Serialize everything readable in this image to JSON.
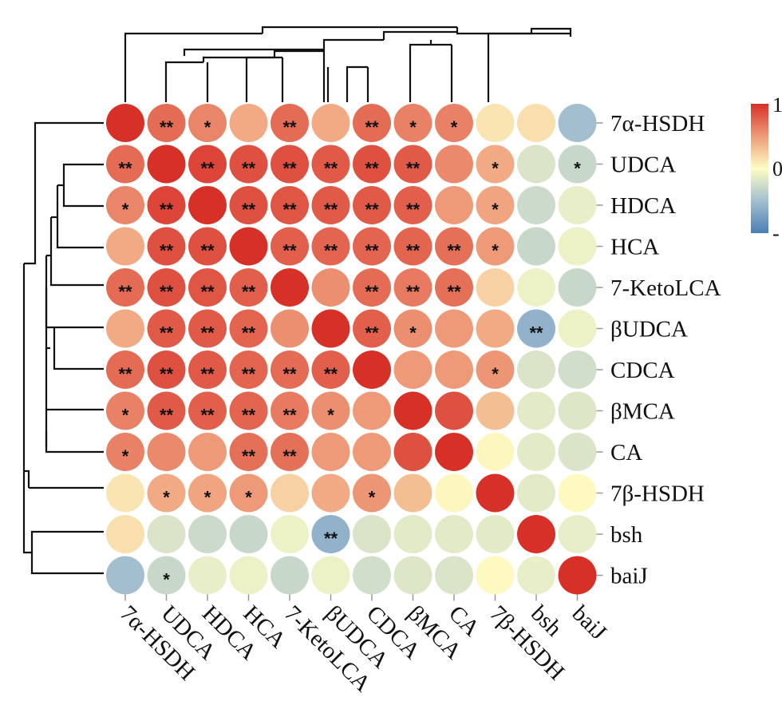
{
  "chart_data": {
    "type": "heatmap",
    "title": "",
    "xlabel": "",
    "ylabel": "",
    "labels": [
      "7α-HSDH",
      "UDCA",
      "HDCA",
      "HCA",
      "7-KetoLCA",
      "βUDCA",
      "CDCA",
      "βMCA",
      "CA",
      "7β-HSDH",
      "bsh",
      "baiJ"
    ],
    "values": [
      [
        1.0,
        0.72,
        0.6,
        0.42,
        0.72,
        0.42,
        0.72,
        0.62,
        0.62,
        0.12,
        0.15,
        -0.5
      ],
      [
        0.72,
        1.0,
        0.9,
        0.85,
        0.85,
        0.8,
        0.85,
        0.8,
        0.58,
        0.42,
        -0.2,
        -0.3
      ],
      [
        0.6,
        0.9,
        1.0,
        0.85,
        0.82,
        0.8,
        0.8,
        0.78,
        0.5,
        0.45,
        -0.28,
        -0.12
      ],
      [
        0.42,
        0.85,
        0.85,
        1.0,
        0.78,
        0.75,
        0.75,
        0.75,
        0.7,
        0.5,
        -0.3,
        -0.1
      ],
      [
        0.72,
        0.85,
        0.82,
        0.78,
        1.0,
        0.55,
        0.72,
        0.65,
        0.7,
        0.22,
        -0.1,
        -0.3
      ],
      [
        0.42,
        0.8,
        0.8,
        0.75,
        0.55,
        1.0,
        0.78,
        0.55,
        0.5,
        0.42,
        -0.6,
        -0.1
      ],
      [
        0.72,
        0.85,
        0.8,
        0.75,
        0.72,
        0.78,
        1.0,
        0.5,
        0.5,
        0.52,
        -0.2,
        -0.25
      ],
      [
        0.62,
        0.8,
        0.78,
        0.75,
        0.65,
        0.55,
        0.5,
        1.0,
        0.85,
        0.32,
        -0.15,
        -0.18
      ],
      [
        0.62,
        0.58,
        0.5,
        0.7,
        0.7,
        0.5,
        0.5,
        0.85,
        1.0,
        0.03,
        -0.15,
        -0.2
      ],
      [
        0.12,
        0.42,
        0.45,
        0.5,
        0.22,
        0.42,
        0.52,
        0.32,
        0.03,
        1.0,
        -0.15,
        0.02
      ],
      [
        0.15,
        -0.2,
        -0.28,
        -0.3,
        -0.1,
        -0.6,
        -0.2,
        -0.15,
        -0.15,
        -0.15,
        1.0,
        -0.12
      ],
      [
        -0.5,
        -0.3,
        -0.12,
        -0.1,
        -0.3,
        -0.1,
        -0.25,
        -0.18,
        -0.2,
        0.02,
        -0.12,
        1.0
      ]
    ],
    "significance": [
      [
        "",
        "**",
        "*",
        "",
        "**",
        "",
        "**",
        "*",
        "*",
        "",
        "",
        ""
      ],
      [
        "**",
        "",
        "**",
        "**",
        "**",
        "**",
        "**",
        "**",
        "",
        "*",
        "",
        "*"
      ],
      [
        "*",
        "**",
        "",
        "**",
        "**",
        "**",
        "**",
        "**",
        "",
        "*",
        "",
        ""
      ],
      [
        "",
        "**",
        "**",
        "",
        "**",
        "**",
        "**",
        "**",
        "**",
        "*",
        "",
        ""
      ],
      [
        "**",
        "**",
        "**",
        "**",
        "",
        "",
        "**",
        "**",
        "**",
        "",
        "",
        ""
      ],
      [
        "",
        "**",
        "**",
        "**",
        "",
        "",
        "**",
        "*",
        "",
        "",
        "**",
        ""
      ],
      [
        "**",
        "**",
        "**",
        "**",
        "**",
        "**",
        "",
        "",
        "",
        "*",
        "",
        ""
      ],
      [
        "*",
        "**",
        "**",
        "**",
        "**",
        "*",
        "",
        "",
        "",
        "",
        "",
        ""
      ],
      [
        "*",
        "",
        "",
        "**",
        "**",
        "",
        "",
        "",
        "",
        "",
        "",
        ""
      ],
      [
        "",
        "*",
        "*",
        "*",
        "",
        "",
        "*",
        "",
        "",
        "",
        "",
        ""
      ],
      [
        "",
        "",
        "",
        "",
        "",
        "**",
        "",
        "",
        "",
        "",
        "",
        ""
      ],
      [
        "",
        "*",
        "",
        "",
        "",
        "",
        "",
        "",
        "",
        "",
        "",
        ""
      ]
    ],
    "color_scale": {
      "min": -1,
      "max": 1,
      "stops": [
        {
          "value": -1,
          "color": "#4a7fb5"
        },
        {
          "value": -0.5,
          "color": "#a3bfcf"
        },
        {
          "value": 0,
          "color": "#fefdc4"
        },
        {
          "value": 0.5,
          "color": "#ee9a78"
        },
        {
          "value": 1,
          "color": "#d73027"
        }
      ],
      "tick_labels": [
        "1",
        "0",
        "-"
      ]
    },
    "dendrogram": "hierarchical clustering tree drawn above the columns and left of the rows"
  }
}
